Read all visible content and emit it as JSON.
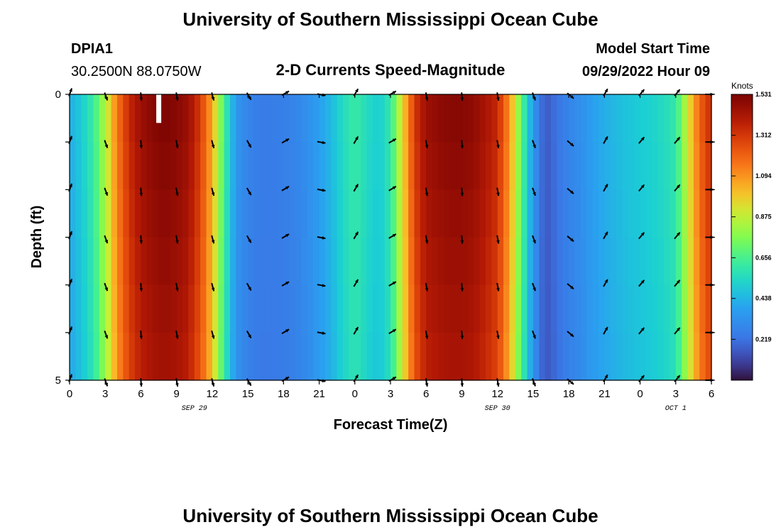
{
  "header": {
    "title": "University of Southern Mississippi Ocean Cube",
    "station_id": "DPIA1",
    "station_coords": "30.2500N  88.0750W",
    "subtitle": "2-D Currents Speed-Magnitude",
    "model_start_label": "Model Start Time",
    "model_start_value": "09/29/2022 Hour 09",
    "bottom_title": "University of Southern Mississippi Ocean Cube"
  },
  "chart_data": {
    "type": "heatmap",
    "title": "2-D Currents Speed-Magnitude",
    "xlabel": "Forecast Time(Z)",
    "ylabel": "Depth (ft)",
    "x_range_hours": [
      0,
      54
    ],
    "y_range": [
      0,
      5
    ],
    "x_tick_labels": [
      "0",
      "3",
      "6",
      "9",
      "12",
      "15",
      "18",
      "21",
      "0",
      "3",
      "6",
      "9",
      "12",
      "15",
      "18",
      "21",
      "0",
      "3",
      "6"
    ],
    "y_tick_labels": [
      "0",
      "5"
    ],
    "date_labels": [
      {
        "text": "SEP 29",
        "hour": 10.5
      },
      {
        "text": "SEP 30",
        "hour": 36
      },
      {
        "text": "OCT 1",
        "hour": 51
      }
    ],
    "colorbar": {
      "unit": "Knots",
      "range": [
        0,
        1.531
      ],
      "ticks": [
        "1.531",
        "1.312",
        "1.094",
        "0.875",
        "0.656",
        "0.438",
        "0.219"
      ],
      "tick_values": [
        1.531,
        1.312,
        1.094,
        0.875,
        0.656,
        0.438,
        0.219
      ]
    },
    "depth_layers": 6,
    "speed_profile_hours": [
      0,
      1,
      2,
      3,
      4,
      5,
      6,
      7,
      8,
      9,
      10,
      11,
      12,
      13,
      14,
      15,
      16,
      17,
      18,
      19,
      20,
      21,
      22,
      23,
      24,
      25,
      26,
      27,
      28,
      29,
      30,
      31,
      32,
      33,
      34,
      35,
      36,
      37,
      38,
      39,
      40,
      41,
      42,
      43,
      44,
      45,
      46,
      47,
      48,
      49,
      50,
      51,
      52,
      53,
      54
    ],
    "speed_profile_knots": [
      0.42,
      0.5,
      0.62,
      0.85,
      1.15,
      1.35,
      1.45,
      1.5,
      1.52,
      1.5,
      1.45,
      1.3,
      1.05,
      0.65,
      0.35,
      0.28,
      0.25,
      0.25,
      0.26,
      0.28,
      0.32,
      0.38,
      0.45,
      0.55,
      0.62,
      0.55,
      0.5,
      0.6,
      0.95,
      1.3,
      1.45,
      1.48,
      1.5,
      1.5,
      1.48,
      1.42,
      1.35,
      1.1,
      0.7,
      0.35,
      0.15,
      0.22,
      0.28,
      0.32,
      0.38,
      0.42,
      0.45,
      0.48,
      0.5,
      0.52,
      0.55,
      0.6,
      0.9,
      1.2,
      1.35
    ],
    "arrow_hours": [
      0,
      3,
      6,
      9,
      12,
      15,
      18,
      21,
      24,
      27,
      30,
      33,
      36,
      39,
      42,
      45,
      48,
      51,
      54
    ],
    "arrow_directions_deg": [
      20,
      160,
      175,
      170,
      165,
      150,
      60,
      100,
      30,
      60,
      170,
      175,
      170,
      160,
      130,
      30,
      40,
      40,
      90
    ],
    "missing_data_hour": 7.5
  }
}
